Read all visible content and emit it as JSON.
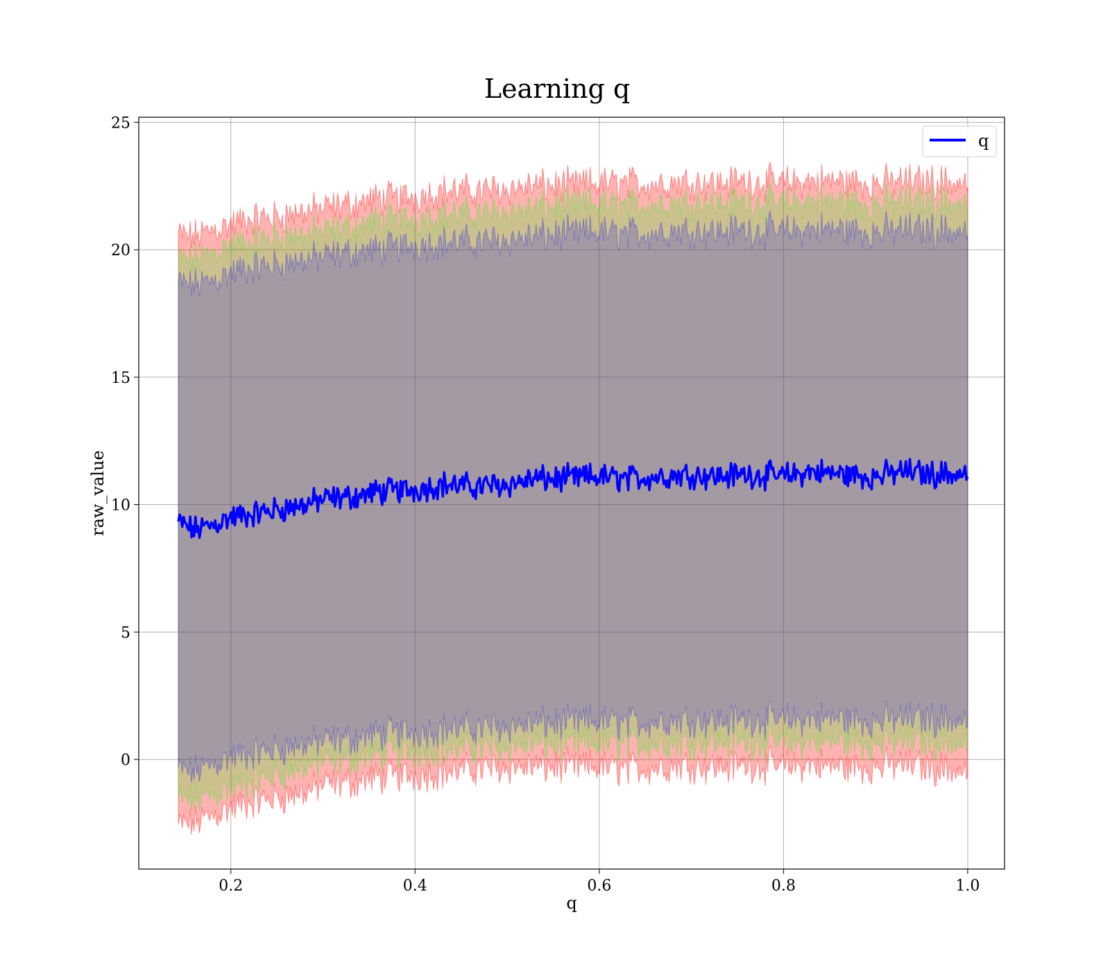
{
  "chart_data": {
    "type": "line",
    "title": "Learning q",
    "xlabel": "q",
    "ylabel": "raw_value",
    "xlim": [
      0.1,
      1.04
    ],
    "ylim": [
      -4.3,
      25.2
    ],
    "xticks": [
      0.2,
      0.4,
      0.6,
      0.8,
      1.0
    ],
    "xtick_labels": [
      "0.2",
      "0.4",
      "0.6",
      "0.8",
      "1.0"
    ],
    "yticks": [
      0,
      5,
      10,
      15,
      20,
      25
    ],
    "ytick_labels": [
      "0",
      "5",
      "10",
      "15",
      "20",
      "25"
    ],
    "grid": true,
    "legend": {
      "placement": "top-right",
      "entries": [
        "q"
      ]
    },
    "series": [
      {
        "name": "q",
        "color": "#0000ff",
        "x": [
          0.143,
          0.16,
          0.18,
          0.2,
          0.22,
          0.25,
          0.28,
          0.3,
          0.33,
          0.36,
          0.4,
          0.43,
          0.46,
          0.5,
          0.53,
          0.56,
          0.6,
          0.63,
          0.66,
          0.7,
          0.73,
          0.76,
          0.8,
          0.83,
          0.86,
          0.9,
          0.93,
          0.96,
          1.0
        ],
        "mean": [
          9.3,
          9.0,
          9.2,
          9.5,
          9.6,
          9.8,
          10.0,
          10.2,
          10.3,
          10.5,
          10.6,
          10.8,
          10.7,
          10.8,
          11.0,
          11.0,
          11.1,
          11.0,
          11.1,
          11.2,
          11.1,
          11.2,
          11.1,
          11.3,
          11.2,
          11.1,
          11.3,
          11.2,
          11.2
        ]
      }
    ],
    "bands": [
      {
        "color": "#ff0000",
        "opacity": 0.3,
        "lower": [
          -2.6,
          -2.5,
          -2.2,
          -1.9,
          -1.7,
          -1.5,
          -1.3,
          -1.0,
          -0.9,
          -0.7,
          -0.6,
          -0.5,
          -0.4,
          -0.3,
          -0.3,
          -0.3,
          -0.3,
          -0.4,
          -0.3,
          -0.2,
          -0.3,
          -0.2,
          -0.3,
          -0.2,
          -0.3,
          -0.3,
          -0.2,
          -0.3,
          -0.5
        ],
        "upper": [
          20.6,
          20.5,
          20.8,
          21.0,
          21.2,
          21.3,
          21.5,
          21.6,
          21.8,
          22.0,
          22.1,
          22.3,
          22.3,
          22.4,
          22.5,
          22.5,
          22.6,
          22.6,
          22.6,
          22.7,
          22.6,
          22.7,
          22.6,
          22.7,
          22.7,
          22.6,
          22.7,
          22.7,
          22.6
        ]
      },
      {
        "color": "#00ff00",
        "opacity": 0.2,
        "lower": [
          -1.6,
          -1.6,
          -1.4,
          -1.1,
          -0.9,
          -0.6,
          -0.3,
          -0.1,
          0.0,
          0.2,
          0.3,
          0.4,
          0.4,
          0.5,
          0.6,
          0.6,
          0.6,
          0.6,
          0.6,
          0.7,
          0.7,
          0.7,
          0.6,
          0.7,
          0.7,
          0.6,
          0.7,
          0.7,
          0.6
        ],
        "upper": [
          19.6,
          19.6,
          19.9,
          20.2,
          20.3,
          20.5,
          20.6,
          20.7,
          20.9,
          21.1,
          21.2,
          21.4,
          21.4,
          21.5,
          21.6,
          21.7,
          21.8,
          21.7,
          21.8,
          21.9,
          21.8,
          21.9,
          21.8,
          21.9,
          21.9,
          21.8,
          21.9,
          21.9,
          21.8
        ]
      },
      {
        "color": "#0000ff",
        "opacity": 0.2,
        "lower": [
          -0.4,
          -0.5,
          -0.2,
          0.1,
          0.2,
          0.4,
          0.6,
          0.7,
          0.8,
          1.0,
          1.1,
          1.2,
          1.2,
          1.3,
          1.4,
          1.4,
          1.5,
          1.4,
          1.5,
          1.6,
          1.5,
          1.6,
          1.5,
          1.6,
          1.6,
          1.5,
          1.6,
          1.6,
          1.5
        ],
        "upper": [
          18.7,
          18.6,
          18.8,
          19.1,
          19.3,
          19.4,
          19.6,
          19.7,
          19.9,
          20.0,
          20.2,
          20.3,
          20.3,
          20.4,
          20.5,
          20.6,
          20.7,
          20.6,
          20.7,
          20.8,
          20.7,
          20.8,
          20.7,
          20.8,
          20.8,
          20.7,
          20.8,
          20.8,
          20.7
        ]
      }
    ]
  }
}
